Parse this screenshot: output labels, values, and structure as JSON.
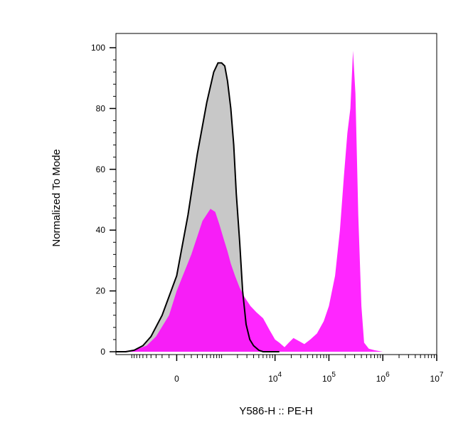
{
  "chart_data": {
    "type": "area",
    "title": "",
    "xlabel": "Y586-H :: PE-H",
    "ylabel": "Normalized To Mode",
    "ylim": [
      0,
      100
    ],
    "x_scale": "biexponential",
    "xlim": [
      -2000,
      10000000
    ],
    "y_ticks": [
      "0",
      "20",
      "40",
      "60",
      "80",
      "100"
    ],
    "x_ticks": [
      {
        "base": "0",
        "exp": ""
      },
      {
        "base": "10",
        "exp": "4"
      },
      {
        "base": "10",
        "exp": "5"
      },
      {
        "base": "10",
        "exp": "6"
      },
      {
        "base": "10",
        "exp": "7"
      }
    ],
    "colors": {
      "control_fill": "#c8c8c8",
      "control_line": "#000000",
      "stained": "#ff00ff"
    },
    "series": [
      {
        "x": [
          -2000,
          -1300,
          -900,
          -600,
          -400,
          -200,
          0,
          150,
          300,
          500,
          700,
          850,
          1000,
          1150,
          1300,
          1500,
          1700,
          1900,
          2200,
          2500,
          2900,
          3400,
          4000,
          5000,
          6000,
          8000,
          12000
        ],
        "values": [
          0,
          0,
          0.5,
          2,
          5,
          12,
          25,
          45,
          65,
          82,
          92,
          95,
          95,
          94,
          89,
          80,
          68,
          52,
          36,
          20,
          9,
          4,
          2,
          0.5,
          0,
          0,
          0
        ]
      },
      {
        "x": [
          -2000,
          -900,
          -500,
          -300,
          -100,
          0,
          200,
          400,
          600,
          750,
          900,
          1100,
          1300,
          1500,
          1800,
          2200,
          2700,
          3500,
          4500,
          6000,
          8000,
          10000,
          12000,
          15000,
          18000,
          22000,
          28000,
          35000,
          45000,
          60000,
          80000,
          100000,
          130000,
          160000,
          190000,
          220000,
          250000,
          280000,
          310000,
          350000,
          400000,
          450000,
          550000,
          700000,
          1000000,
          3000000,
          10000000
        ],
        "values": [
          0,
          0.5,
          2,
          5,
          12,
          20,
          32,
          43,
          47,
          46,
          42,
          37,
          33,
          29,
          25,
          21,
          18,
          15,
          13,
          11,
          7,
          4,
          3,
          1.5,
          3,
          4.5,
          3.5,
          2.5,
          4,
          6,
          10,
          15,
          25,
          40,
          58,
          72,
          80,
          99,
          85,
          45,
          15,
          3,
          1,
          0.5,
          0,
          0,
          0
        ]
      }
    ]
  }
}
